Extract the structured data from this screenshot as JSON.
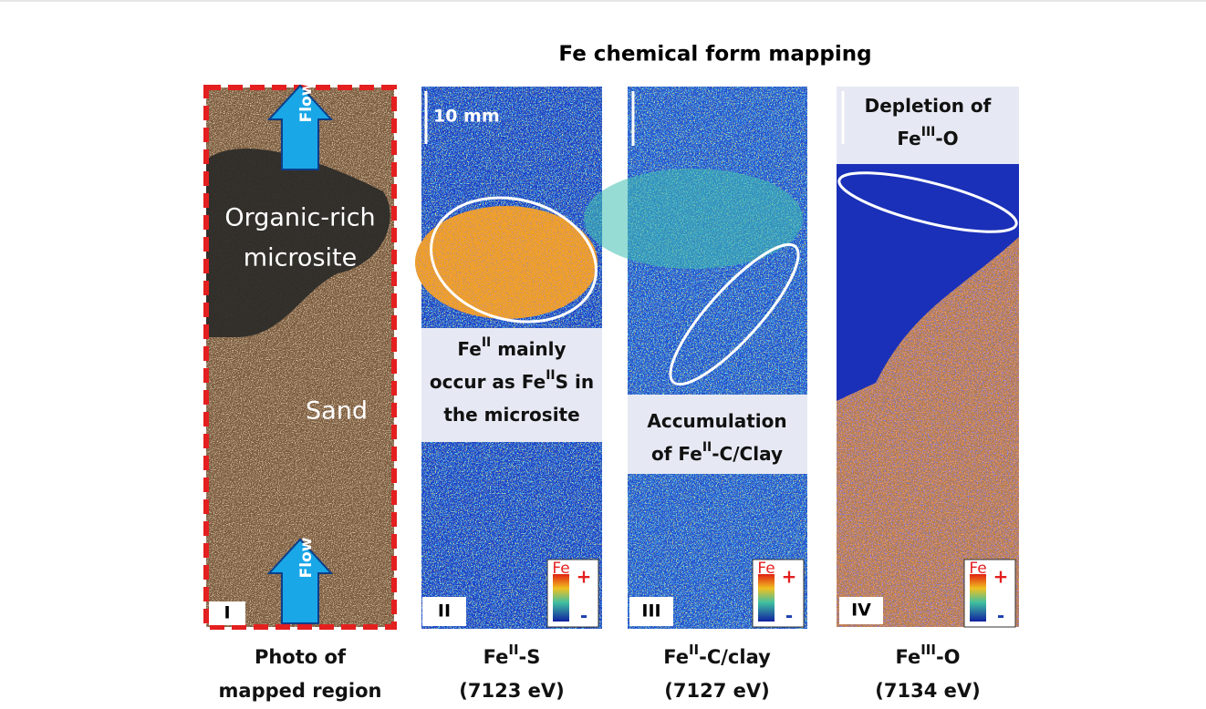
{
  "title": "Fe chemical form mapping",
  "scale_bar": "10 mm",
  "colorbar": {
    "label": "Fe",
    "high": "+",
    "low": "-"
  },
  "panels": [
    {
      "numeral": "I",
      "flow": [
        "Flow",
        "Flow"
      ],
      "site": [
        "Organic-rich",
        "microsite"
      ],
      "sand": "Sand",
      "caption": [
        [
          {
            "text": "Photo of"
          }
        ],
        [
          {
            "text": "mapped region"
          }
        ]
      ]
    },
    {
      "numeral": "II",
      "note": [
        [
          {
            "text": "Fe"
          },
          {
            "text": "II",
            "sup": true
          },
          {
            "text": " mainly"
          }
        ],
        [
          {
            "text": "occur as Fe"
          },
          {
            "text": "II",
            "sup": true
          },
          {
            "text": "S in"
          }
        ],
        [
          {
            "text": "the microsite"
          }
        ]
      ],
      "caption": [
        [
          {
            "text": "Fe"
          },
          {
            "text": "II",
            "sup": true
          },
          {
            "text": "-S"
          }
        ],
        [
          {
            "text": "(7123 eV)"
          }
        ]
      ]
    },
    {
      "numeral": "III",
      "note": [
        [
          {
            "text": "Accumulation"
          }
        ],
        [
          {
            "text": "of Fe"
          },
          {
            "text": "II",
            "sup": true
          },
          {
            "text": "-C/Clay"
          }
        ]
      ],
      "caption": [
        [
          {
            "text": "Fe"
          },
          {
            "text": "II",
            "sup": true
          },
          {
            "text": "-C/clay"
          }
        ],
        [
          {
            "text": "(7127 eV)"
          }
        ]
      ]
    },
    {
      "numeral": "IV",
      "note": [
        [
          {
            "text": "Depletion of"
          }
        ],
        [
          {
            "text": "Fe"
          },
          {
            "text": "III",
            "sup": true
          },
          {
            "text": "-O"
          }
        ]
      ],
      "caption": [
        [
          {
            "text": "Fe"
          },
          {
            "text": "III",
            "sup": true
          },
          {
            "text": "-O"
          }
        ],
        [
          {
            "text": "(7134 eV)"
          }
        ]
      ]
    }
  ]
}
